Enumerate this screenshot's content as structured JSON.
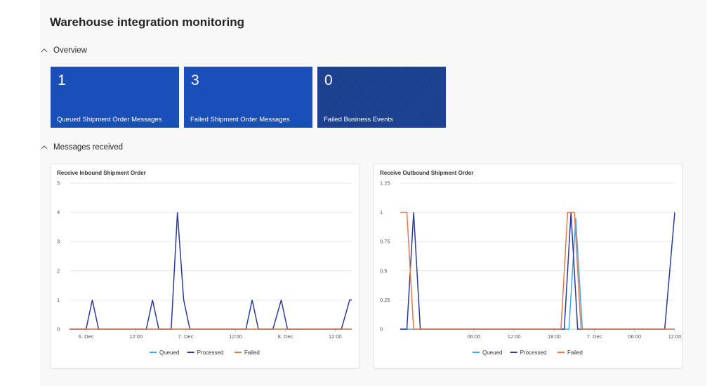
{
  "page": {
    "title": "Warehouse integration monitoring"
  },
  "sections": {
    "overview": "Overview",
    "messages_received": "Messages received"
  },
  "tiles": [
    {
      "count": "1",
      "label": "Queued Shipment Order Messages"
    },
    {
      "count": "3",
      "label": "Failed Shipment Order Messages"
    },
    {
      "count": "0",
      "label": "Failed Business Events"
    }
  ],
  "colors": {
    "tile_primary": "#1a4fba",
    "tile_dark": "#1b3f8f",
    "queued": "#3fa9f5",
    "processed": "#2b3a9c",
    "failed": "#e8794a"
  },
  "chart_data": [
    {
      "type": "line",
      "title": "Receive Inbound Shipment Order",
      "ylim": [
        0,
        5
      ],
      "yticks": [
        "0",
        "1",
        "2",
        "3",
        "4",
        "5"
      ],
      "xticks": [
        "6. Dec",
        "12:00",
        "7. Dec",
        "12:00",
        "8. Dec",
        "12:00"
      ],
      "xlim_hours": [
        -4,
        64
      ],
      "xtick_hours": [
        0,
        12,
        24,
        36,
        48,
        60
      ],
      "legend": [
        "Queued",
        "Processed",
        "Failed"
      ],
      "series": [
        {
          "name": "Queued",
          "x": [
            -4,
            64
          ],
          "values": [
            0,
            0
          ]
        },
        {
          "name": "Processed",
          "x": [
            -4,
            0,
            1.5,
            3,
            14.5,
            16,
            17.5,
            20.5,
            22,
            23.5,
            25,
            38.5,
            40,
            41.5,
            45,
            47,
            48.5,
            61.5,
            63.5,
            64
          ],
          "values": [
            0,
            0,
            1,
            0,
            0,
            1,
            0,
            0,
            4,
            1,
            0,
            0,
            1,
            0,
            0,
            1,
            0,
            0,
            1,
            1
          ]
        },
        {
          "name": "Failed",
          "x": [
            -4,
            64
          ],
          "values": [
            0,
            0
          ]
        }
      ]
    },
    {
      "type": "line",
      "title": "Receive Outbound Shipment Order",
      "ylim": [
        0,
        1.25
      ],
      "yticks": [
        "0",
        "0.25",
        "0.5",
        "0.75",
        "1",
        "1.25"
      ],
      "xticks": [
        "06:00",
        "12:00",
        "18:00",
        "7. Dec",
        "06:00",
        "12:00"
      ],
      "xlim_hours": [
        -5,
        36
      ],
      "xtick_hours": [
        6,
        12,
        18,
        24,
        30,
        36
      ],
      "legend": [
        "Queued",
        "Processed",
        "Failed"
      ],
      "series": [
        {
          "name": "Queued",
          "x": [
            -5,
            20.2,
            21.2,
            22.2,
            36
          ],
          "values": [
            0,
            0,
            0.95,
            0,
            0
          ]
        },
        {
          "name": "Processed",
          "x": [
            -5,
            -4,
            -3,
            -2,
            19.5,
            20.5,
            21.5,
            34.5,
            36
          ],
          "values": [
            0,
            0,
            1,
            0,
            0,
            1,
            0,
            0,
            1
          ]
        },
        {
          "name": "Failed",
          "x": [
            -5,
            -4,
            -3,
            19,
            20,
            21,
            22,
            36
          ],
          "values": [
            1,
            1,
            0,
            0,
            1,
            1,
            0,
            0
          ]
        }
      ]
    }
  ]
}
